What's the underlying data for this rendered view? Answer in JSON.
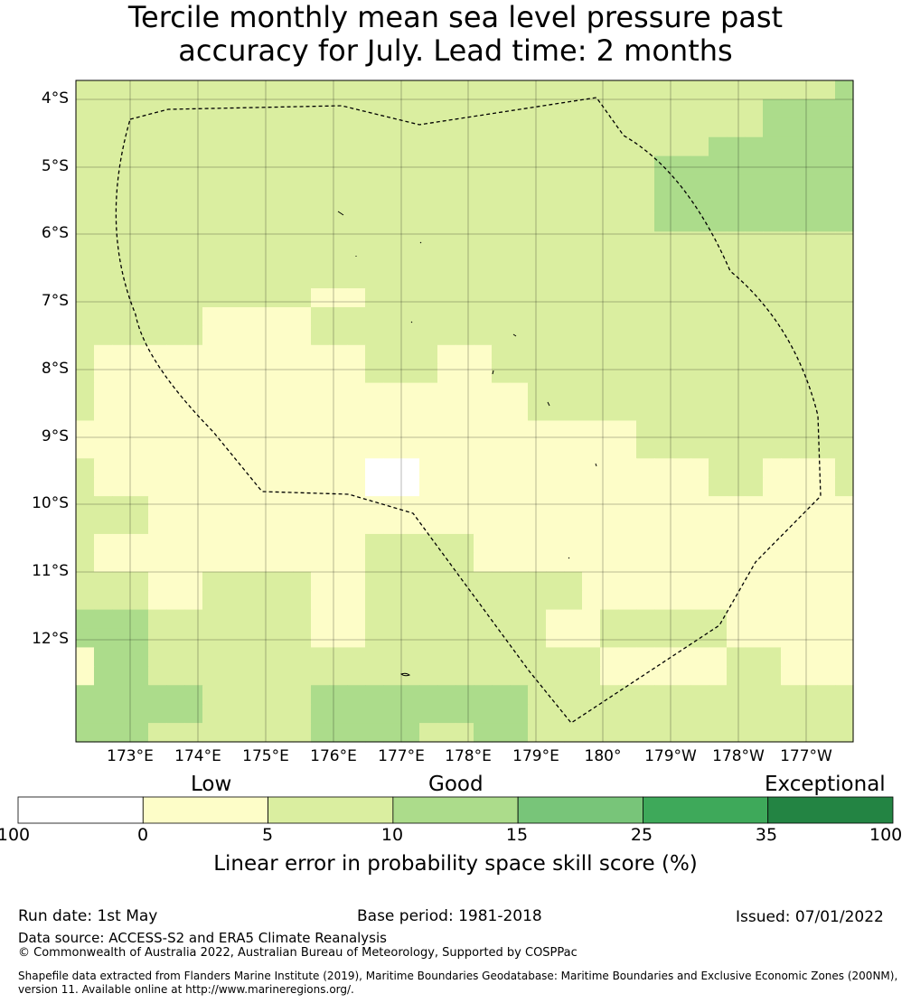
{
  "title": {
    "line1": "Tercile monthly mean sea level pressure past",
    "line2": "accuracy for July. Lead time: 2 months"
  },
  "map": {
    "lat_labels": [
      "4°S",
      "5°S",
      "6°S",
      "7°S",
      "8°S",
      "9°S",
      "10°S",
      "11°S",
      "12°S"
    ],
    "lon_labels": [
      "173°E",
      "174°E",
      "175°E",
      "176°E",
      "177°E",
      "178°E",
      "179°E",
      "180°",
      "179°W",
      "178°W",
      "177°W"
    ],
    "colors": [
      "#ffffff",
      "#fdfdc8",
      "#daeea0",
      "#acdc8b",
      "#78c579",
      "#3ea95a",
      "#238443"
    ],
    "grid": [
      [
        2,
        2,
        2,
        2,
        2,
        2,
        2,
        2,
        2,
        2,
        2,
        2,
        2,
        2,
        2,
        2,
        2,
        2,
        2,
        2,
        2,
        2,
        2,
        2,
        2,
        2,
        2,
        2,
        2,
        2,
        2,
        2,
        2,
        2,
        2,
        2,
        2,
        2,
        2,
        2,
        2,
        2,
        3
      ],
      [
        2,
        2,
        2,
        2,
        2,
        2,
        2,
        2,
        2,
        2,
        2,
        2,
        2,
        2,
        2,
        2,
        2,
        2,
        2,
        2,
        2,
        2,
        2,
        2,
        2,
        2,
        2,
        2,
        2,
        2,
        2,
        2,
        2,
        2,
        2,
        2,
        2,
        2,
        3,
        3,
        3,
        3,
        3
      ],
      [
        2,
        2,
        2,
        2,
        2,
        2,
        2,
        2,
        2,
        2,
        2,
        2,
        2,
        2,
        2,
        2,
        2,
        2,
        2,
        2,
        2,
        2,
        2,
        2,
        2,
        2,
        2,
        2,
        2,
        2,
        2,
        2,
        2,
        2,
        2,
        2,
        2,
        2,
        3,
        3,
        3,
        3,
        3
      ],
      [
        2,
        2,
        2,
        2,
        2,
        2,
        2,
        2,
        2,
        2,
        2,
        2,
        2,
        2,
        2,
        2,
        2,
        2,
        2,
        2,
        2,
        2,
        2,
        2,
        2,
        2,
        2,
        2,
        2,
        2,
        2,
        2,
        2,
        2,
        2,
        3,
        3,
        3,
        3,
        3,
        3,
        3,
        3
      ],
      [
        2,
        2,
        2,
        2,
        2,
        2,
        2,
        2,
        2,
        2,
        2,
        2,
        2,
        2,
        2,
        2,
        2,
        2,
        2,
        2,
        2,
        2,
        2,
        2,
        2,
        2,
        2,
        2,
        2,
        2,
        2,
        2,
        3,
        3,
        3,
        3,
        3,
        3,
        3,
        3,
        3,
        3,
        3
      ],
      [
        2,
        2,
        2,
        2,
        2,
        2,
        2,
        2,
        2,
        2,
        2,
        2,
        2,
        2,
        2,
        2,
        2,
        2,
        2,
        2,
        2,
        2,
        2,
        2,
        2,
        2,
        2,
        2,
        2,
        2,
        2,
        2,
        3,
        3,
        3,
        3,
        3,
        3,
        3,
        3,
        3,
        3,
        3
      ],
      [
        2,
        2,
        2,
        2,
        2,
        2,
        2,
        2,
        2,
        2,
        2,
        2,
        2,
        2,
        2,
        2,
        2,
        2,
        2,
        2,
        2,
        2,
        2,
        2,
        2,
        2,
        2,
        2,
        2,
        2,
        2,
        2,
        3,
        3,
        3,
        3,
        3,
        3,
        3,
        3,
        3,
        3,
        3
      ],
      [
        2,
        2,
        2,
        2,
        2,
        2,
        2,
        2,
        2,
        2,
        2,
        2,
        2,
        2,
        2,
        2,
        2,
        2,
        2,
        2,
        2,
        2,
        2,
        2,
        2,
        2,
        2,
        2,
        2,
        2,
        2,
        2,
        3,
        3,
        3,
        3,
        3,
        3,
        3,
        3,
        3,
        3,
        3
      ],
      [
        2,
        2,
        2,
        2,
        2,
        2,
        2,
        2,
        2,
        2,
        2,
        2,
        2,
        2,
        2,
        2,
        2,
        2,
        2,
        2,
        2,
        2,
        2,
        2,
        2,
        2,
        2,
        2,
        2,
        2,
        2,
        2,
        2,
        2,
        2,
        2,
        2,
        2,
        2,
        2,
        2,
        2,
        2
      ],
      [
        2,
        2,
        2,
        2,
        2,
        2,
        2,
        2,
        2,
        2,
        2,
        2,
        2,
        2,
        2,
        2,
        2,
        2,
        2,
        2,
        2,
        2,
        2,
        2,
        2,
        2,
        2,
        2,
        2,
        2,
        2,
        2,
        2,
        2,
        2,
        2,
        2,
        2,
        2,
        2,
        2,
        2,
        2
      ],
      [
        2,
        2,
        2,
        2,
        2,
        2,
        2,
        2,
        2,
        2,
        2,
        2,
        2,
        2,
        2,
        2,
        2,
        2,
        2,
        2,
        2,
        2,
        2,
        2,
        2,
        2,
        2,
        2,
        2,
        2,
        2,
        2,
        2,
        2,
        2,
        2,
        2,
        2,
        2,
        2,
        2,
        2,
        2
      ],
      [
        2,
        2,
        2,
        2,
        2,
        2,
        2,
        2,
        2,
        2,
        2,
        2,
        2,
        1,
        1,
        1,
        2,
        2,
        2,
        2,
        2,
        2,
        2,
        2,
        2,
        2,
        2,
        2,
        2,
        2,
        2,
        2,
        2,
        2,
        2,
        2,
        2,
        2,
        2,
        2,
        2,
        2,
        2
      ],
      [
        2,
        2,
        2,
        2,
        2,
        2,
        2,
        1,
        1,
        1,
        1,
        1,
        1,
        2,
        2,
        2,
        2,
        2,
        2,
        2,
        2,
        2,
        2,
        2,
        2,
        2,
        2,
        2,
        2,
        2,
        2,
        2,
        2,
        2,
        2,
        2,
        2,
        2,
        2,
        2,
        2,
        2,
        2
      ],
      [
        2,
        2,
        2,
        2,
        2,
        2,
        2,
        1,
        1,
        1,
        1,
        1,
        1,
        2,
        2,
        2,
        2,
        2,
        2,
        2,
        2,
        2,
        2,
        2,
        2,
        2,
        2,
        2,
        2,
        2,
        2,
        2,
        2,
        2,
        2,
        2,
        2,
        2,
        2,
        2,
        2,
        2,
        2
      ],
      [
        2,
        1,
        1,
        1,
        1,
        1,
        1,
        1,
        1,
        1,
        1,
        1,
        1,
        1,
        1,
        1,
        2,
        2,
        2,
        2,
        1,
        1,
        1,
        2,
        2,
        2,
        2,
        2,
        2,
        2,
        2,
        2,
        2,
        2,
        2,
        2,
        2,
        2,
        2,
        2,
        2,
        2,
        2
      ],
      [
        2,
        1,
        1,
        1,
        1,
        1,
        1,
        1,
        1,
        1,
        1,
        1,
        1,
        1,
        1,
        1,
        2,
        2,
        2,
        2,
        1,
        1,
        1,
        2,
        2,
        2,
        2,
        2,
        2,
        2,
        2,
        2,
        2,
        2,
        2,
        2,
        2,
        2,
        2,
        2,
        2,
        2,
        2
      ],
      [
        2,
        1,
        1,
        1,
        1,
        1,
        1,
        1,
        1,
        1,
        1,
        1,
        1,
        1,
        1,
        1,
        1,
        1,
        1,
        1,
        1,
        1,
        1,
        1,
        1,
        2,
        2,
        2,
        2,
        2,
        2,
        2,
        2,
        2,
        2,
        2,
        2,
        2,
        2,
        2,
        2,
        2,
        2
      ],
      [
        2,
        1,
        1,
        1,
        1,
        1,
        1,
        1,
        1,
        1,
        1,
        1,
        1,
        1,
        1,
        1,
        1,
        1,
        1,
        1,
        1,
        1,
        1,
        1,
        1,
        2,
        2,
        2,
        2,
        2,
        2,
        2,
        2,
        2,
        2,
        2,
        2,
        2,
        2,
        2,
        2,
        2,
        2
      ],
      [
        1,
        1,
        1,
        1,
        1,
        1,
        1,
        1,
        1,
        1,
        1,
        1,
        1,
        1,
        1,
        1,
        1,
        1,
        1,
        1,
        1,
        1,
        1,
        1,
        1,
        1,
        1,
        1,
        1,
        1,
        1,
        2,
        2,
        2,
        2,
        2,
        2,
        2,
        2,
        2,
        2,
        2,
        2
      ],
      [
        1,
        1,
        1,
        1,
        1,
        1,
        1,
        1,
        1,
        1,
        1,
        1,
        1,
        1,
        1,
        1,
        1,
        1,
        1,
        1,
        1,
        1,
        1,
        1,
        1,
        1,
        1,
        1,
        1,
        1,
        1,
        2,
        2,
        2,
        2,
        2,
        2,
        2,
        2,
        2,
        2,
        2,
        2
      ],
      [
        2,
        1,
        1,
        1,
        1,
        1,
        1,
        1,
        1,
        1,
        1,
        1,
        1,
        1,
        1,
        1,
        0,
        0,
        0,
        1,
        1,
        1,
        1,
        1,
        1,
        1,
        1,
        1,
        1,
        1,
        1,
        1,
        1,
        1,
        1,
        2,
        2,
        2,
        1,
        1,
        1,
        1,
        2
      ],
      [
        2,
        1,
        1,
        1,
        1,
        1,
        1,
        1,
        1,
        1,
        1,
        1,
        1,
        1,
        1,
        1,
        0,
        0,
        0,
        1,
        1,
        1,
        1,
        1,
        1,
        1,
        1,
        1,
        1,
        1,
        1,
        1,
        1,
        1,
        1,
        2,
        2,
        2,
        1,
        1,
        1,
        1,
        2
      ],
      [
        2,
        2,
        2,
        2,
        1,
        1,
        1,
        1,
        1,
        1,
        1,
        1,
        1,
        1,
        1,
        1,
        1,
        1,
        1,
        1,
        1,
        1,
        1,
        1,
        1,
        1,
        1,
        1,
        1,
        1,
        1,
        1,
        1,
        1,
        1,
        1,
        1,
        1,
        1,
        1,
        1,
        1,
        1
      ],
      [
        2,
        2,
        2,
        2,
        1,
        1,
        1,
        1,
        1,
        1,
        1,
        1,
        1,
        1,
        1,
        1,
        1,
        1,
        1,
        1,
        1,
        1,
        1,
        1,
        1,
        1,
        1,
        1,
        1,
        1,
        1,
        1,
        1,
        1,
        1,
        1,
        1,
        1,
        1,
        1,
        1,
        1,
        1
      ],
      [
        2,
        1,
        1,
        1,
        1,
        1,
        1,
        1,
        1,
        1,
        1,
        1,
        1,
        1,
        1,
        1,
        2,
        2,
        2,
        2,
        2,
        2,
        1,
        1,
        1,
        1,
        1,
        1,
        1,
        1,
        1,
        1,
        1,
        1,
        1,
        1,
        1,
        1,
        1,
        1,
        1,
        1,
        1
      ],
      [
        2,
        1,
        1,
        1,
        1,
        1,
        1,
        1,
        1,
        1,
        1,
        1,
        1,
        1,
        1,
        1,
        2,
        2,
        2,
        2,
        2,
        2,
        1,
        1,
        1,
        1,
        1,
        1,
        1,
        1,
        1,
        1,
        1,
        1,
        1,
        1,
        1,
        1,
        1,
        1,
        1,
        1,
        1
      ],
      [
        2,
        2,
        2,
        2,
        1,
        1,
        1,
        2,
        2,
        2,
        2,
        2,
        2,
        1,
        1,
        1,
        2,
        2,
        2,
        2,
        2,
        2,
        2,
        2,
        2,
        2,
        2,
        2,
        1,
        1,
        1,
        1,
        1,
        1,
        1,
        1,
        1,
        1,
        1,
        1,
        1,
        1,
        1
      ],
      [
        2,
        2,
        2,
        2,
        1,
        1,
        1,
        2,
        2,
        2,
        2,
        2,
        2,
        1,
        1,
        1,
        2,
        2,
        2,
        2,
        2,
        2,
        2,
        2,
        2,
        2,
        2,
        2,
        1,
        1,
        1,
        1,
        1,
        1,
        1,
        1,
        1,
        1,
        1,
        1,
        1,
        1,
        1
      ],
      [
        3,
        3,
        3,
        3,
        2,
        2,
        2,
        2,
        2,
        2,
        2,
        2,
        2,
        1,
        1,
        1,
        2,
        2,
        2,
        2,
        2,
        2,
        2,
        2,
        2,
        2,
        1,
        1,
        1,
        2,
        2,
        2,
        2,
        2,
        2,
        2,
        1,
        1,
        1,
        1,
        1,
        1,
        1
      ],
      [
        3,
        3,
        3,
        3,
        2,
        2,
        2,
        2,
        2,
        2,
        2,
        2,
        2,
        1,
        1,
        1,
        2,
        2,
        2,
        2,
        2,
        2,
        2,
        2,
        2,
        2,
        1,
        1,
        1,
        2,
        2,
        2,
        2,
        2,
        2,
        2,
        1,
        1,
        1,
        1,
        1,
        1,
        1
      ],
      [
        1,
        3,
        3,
        3,
        2,
        2,
        2,
        2,
        2,
        2,
        2,
        2,
        2,
        2,
        2,
        2,
        2,
        2,
        2,
        2,
        2,
        2,
        2,
        2,
        2,
        2,
        2,
        2,
        2,
        1,
        1,
        1,
        1,
        1,
        1,
        1,
        2,
        2,
        2,
        1,
        1,
        1,
        1
      ],
      [
        1,
        3,
        3,
        3,
        2,
        2,
        2,
        2,
        2,
        2,
        2,
        2,
        2,
        2,
        2,
        2,
        2,
        2,
        2,
        2,
        2,
        2,
        2,
        2,
        2,
        2,
        2,
        2,
        2,
        1,
        1,
        1,
        1,
        1,
        1,
        1,
        2,
        2,
        2,
        1,
        1,
        1,
        1
      ],
      [
        3,
        3,
        3,
        3,
        3,
        3,
        3,
        2,
        2,
        2,
        2,
        2,
        2,
        3,
        3,
        3,
        3,
        3,
        3,
        3,
        3,
        3,
        3,
        3,
        3,
        2,
        2,
        2,
        2,
        2,
        2,
        2,
        2,
        2,
        2,
        2,
        2,
        2,
        2,
        2,
        2,
        2,
        2
      ],
      [
        3,
        3,
        3,
        3,
        3,
        3,
        3,
        2,
        2,
        2,
        2,
        2,
        2,
        3,
        3,
        3,
        3,
        3,
        3,
        3,
        3,
        3,
        3,
        3,
        3,
        2,
        2,
        2,
        2,
        2,
        2,
        2,
        2,
        2,
        2,
        2,
        2,
        2,
        2,
        2,
        2,
        2,
        2
      ],
      [
        3,
        3,
        3,
        3,
        2,
        2,
        2,
        2,
        2,
        2,
        2,
        2,
        2,
        3,
        3,
        3,
        3,
        3,
        3,
        2,
        2,
        2,
        3,
        3,
        3,
        2,
        2,
        2,
        2,
        2,
        2,
        2,
        2,
        2,
        2,
        2,
        2,
        2,
        2,
        2,
        2,
        2,
        2
      ]
    ]
  },
  "colorbar": {
    "categories": [
      "Low",
      "Good",
      "Exceptional"
    ],
    "ticks": [
      "-100",
      "0",
      "5",
      "10",
      "15",
      "25",
      "35",
      "100"
    ],
    "title": "Linear error in probability space skill score (%)"
  },
  "footer": {
    "run_date": "Run date: 1st May",
    "base_period": "Base period: 1981-2018",
    "issued": "Issued: 07/01/2022",
    "data_source": "Data source: ACCESS-S2 and ERA5 Climate Reanalysis",
    "copyright": "© Commonwealth of Australia 2022, Australian Bureau of Meteorology, Supported by COSPPac",
    "shapefile": "Shapefile data extracted from Flanders Marine Institute (2019), Maritime Boundaries Geodatabase: Maritime Boundaries and Exclusive Economic Zones (200NM), version 11. Available online at http://www.marineregions.org/."
  }
}
